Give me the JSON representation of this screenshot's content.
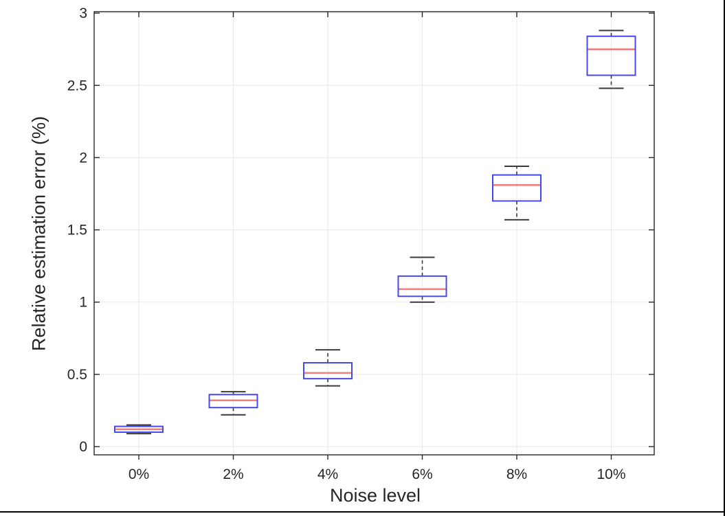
{
  "chart_data": {
    "type": "boxplot",
    "title": "",
    "xlabel": "Noise level",
    "ylabel": "Relative estimation error (%)",
    "categories": [
      "0%",
      "2%",
      "4%",
      "6%",
      "8%",
      "10%"
    ],
    "yticks": [
      0,
      0.5,
      1,
      1.5,
      2,
      2.5,
      3
    ],
    "ytick_labels": [
      "0",
      "0.5",
      "1",
      "1.5",
      "2",
      "2.5",
      "3"
    ],
    "ylim": [
      -0.057,
      3.01
    ],
    "grid": true,
    "legend": "none",
    "boxes": [
      {
        "category": "0%",
        "whisker_low": 0.09,
        "q1": 0.1,
        "median": 0.12,
        "q3": 0.14,
        "whisker_high": 0.15
      },
      {
        "category": "2%",
        "whisker_low": 0.22,
        "q1": 0.27,
        "median": 0.32,
        "q3": 0.36,
        "whisker_high": 0.38
      },
      {
        "category": "4%",
        "whisker_low": 0.42,
        "q1": 0.47,
        "median": 0.51,
        "q3": 0.58,
        "whisker_high": 0.67
      },
      {
        "category": "6%",
        "whisker_low": 1.0,
        "q1": 1.04,
        "median": 1.09,
        "q3": 1.18,
        "whisker_high": 1.31
      },
      {
        "category": "8%",
        "whisker_low": 1.57,
        "q1": 1.7,
        "median": 1.81,
        "q3": 1.88,
        "whisker_high": 1.94
      },
      {
        "category": "10%",
        "whisker_low": 2.48,
        "q1": 2.57,
        "median": 2.75,
        "q3": 2.84,
        "whisker_high": 2.88
      }
    ],
    "colors": {
      "box_edge": "#4747f0",
      "median": "#f28080",
      "whisker": "#3a3a3a",
      "axis": "#262626",
      "grid": "#ebebeb",
      "text": "#262626",
      "background": "#ffffff",
      "page_border": "#000000"
    }
  }
}
